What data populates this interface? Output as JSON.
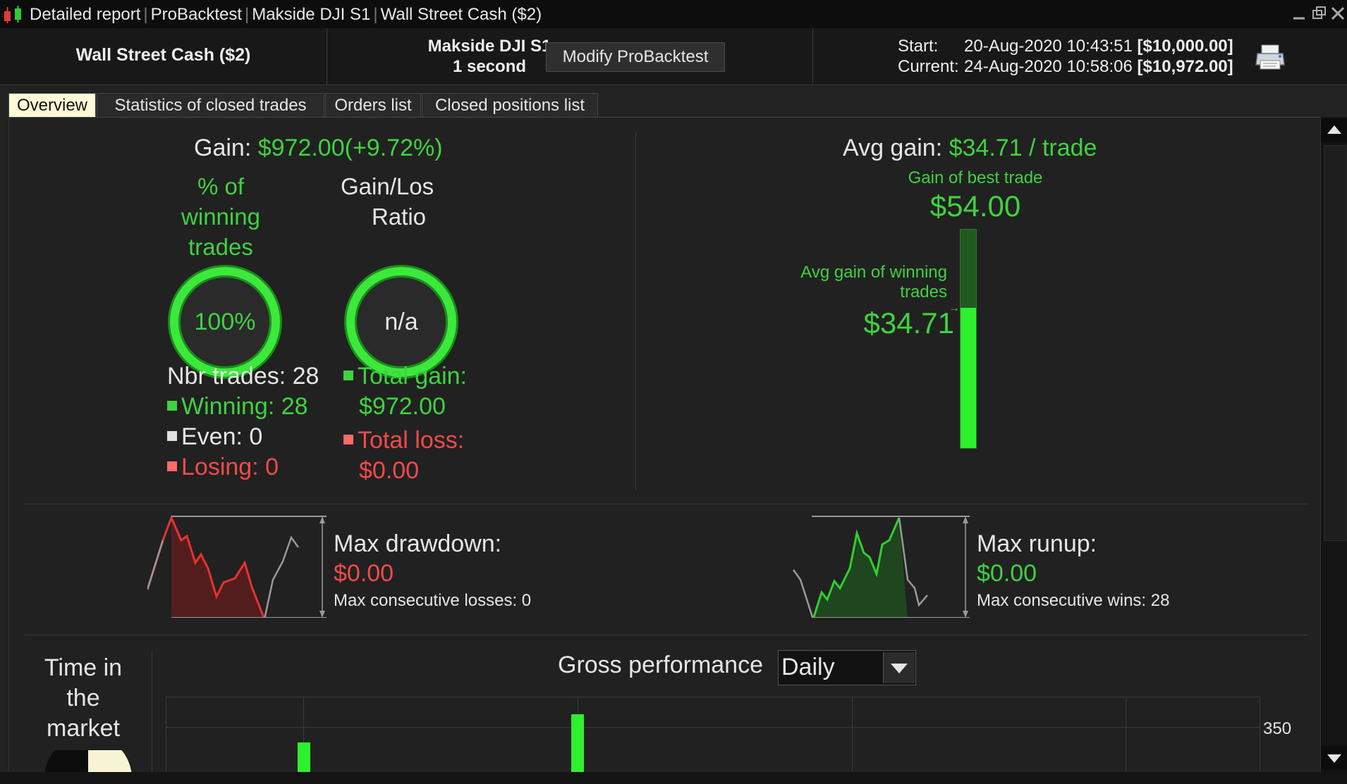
{
  "titlebar": {
    "parts": [
      "Detailed report",
      "ProBacktest",
      "Makside DJI S1",
      "Wall Street Cash ($2)"
    ],
    "minimize_icon": "minimize-icon",
    "restore_icon": "restore-icon",
    "close_icon": "close-icon"
  },
  "header": {
    "instrument": "Wall Street Cash ($2)",
    "system_name": "Makside DJI S1",
    "timeframe": "1 second",
    "modify_label": "Modify ProBacktest",
    "start_label": "Start:",
    "start_date": "20-Aug-2020 10:43:51",
    "start_capital": "[$10,000.00]",
    "current_label": "Current:",
    "current_date": "24-Aug-2020 10:58:06",
    "current_capital": "[$10,972.00]",
    "print_icon": "printer-icon"
  },
  "tabs": [
    {
      "label": "Overview",
      "active": true
    },
    {
      "label": "Statistics of closed trades",
      "active": false
    },
    {
      "label": "Orders list",
      "active": false
    },
    {
      "label": "Closed positions list",
      "active": false
    }
  ],
  "overview": {
    "gain_label": "Gain:",
    "gain_value": "$972.00",
    "gain_pct": "(+9.72%)",
    "winning_pct_title_1": "% of",
    "winning_pct_title_2": "winning",
    "winning_pct_title_3": "trades",
    "ratio_title_1": "Gain/Los",
    "ratio_title_2": "Ratio",
    "winning_pct_value": "100%",
    "ratio_value": "n/a",
    "nbr_trades": "Nbr trades: 28",
    "winning": "Winning: 28",
    "even": "Even: 0",
    "losing": "Losing: 0",
    "total_gain_label": "Total gain:",
    "total_gain_value": "$972.00",
    "total_loss_label": "Total loss:",
    "total_loss_value": "$0.00",
    "avg_gain_label": "Avg gain:",
    "avg_gain_value": "$34.71 / trade",
    "best_trade_label": "Gain of best trade",
    "best_trade_value": "$54.00",
    "avg_winning_label_1": "Avg gain of winning",
    "avg_winning_label_2": "trades",
    "avg_winning_value": "$34.71",
    "avg_winning_fraction": 0.643,
    "max_drawdown_label": "Max drawdown:",
    "max_drawdown_value": "$0.00",
    "max_consec_losses": "Max consecutive losses: 0",
    "max_runup_label": "Max runup:",
    "max_runup_value": "$0.00",
    "max_consec_wins": "Max consecutive wins: 28",
    "time_in_market_1": "Time in",
    "time_in_market_2": "the",
    "time_in_market_3": "market",
    "gross_perf_label": "Gross performance",
    "period_selected": "Daily",
    "y_tick": "350"
  },
  "colors": {
    "green": "#3fd23f",
    "red": "#ef4b4b",
    "bar_green": "#2ef02e",
    "tab_active_bg": "#fff9d6"
  }
}
